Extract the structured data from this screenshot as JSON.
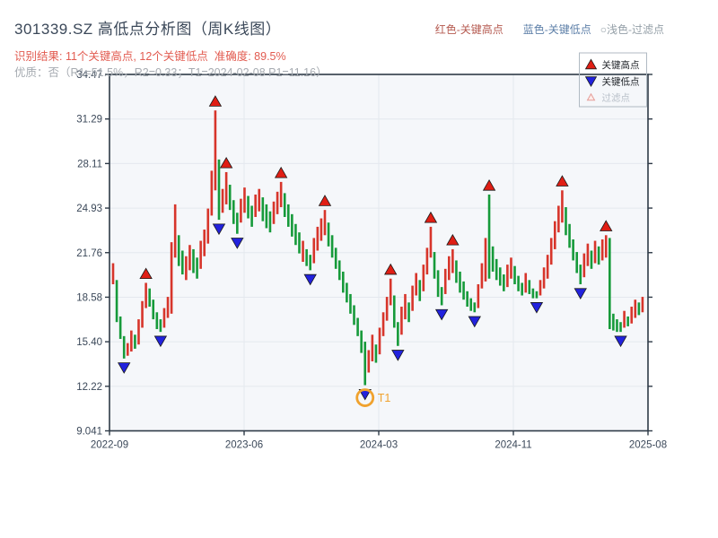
{
  "header": {
    "title": "301339.SZ 高低点分析图（周K线图）",
    "result": "识别结果: 11个关键高点, 12个关键低点  准确度: 89.5%",
    "quality": "优质：否（R1=51.5%，R2=0.33；T1=2024-02-08 P1=11.16）"
  },
  "note": {
    "red": "红色-关键高点",
    "blue": "蓝色-关键低点",
    "filter": "○浅色-过滤点"
  },
  "legend": {
    "high": "关键高点",
    "low": "关键低点",
    "filtered": "过滤点"
  },
  "colors": {
    "up": "#d7352b",
    "down": "#169a3a",
    "key_high": "#e01e14",
    "key_low": "#2222dd",
    "marker_outline": "#1a1a1a",
    "filtered_fill": "#fdecea",
    "filtered_stroke": "#e59d98",
    "t1": "#f0a22e",
    "axis": "#2e3a47",
    "grid": "#e4e8ee",
    "plot_bg": "#f5f7fa",
    "label": "#3b4859",
    "legend_border": "#b0bac3",
    "legend_text": "#1f2328",
    "legend_muted": "#b9c0c9"
  },
  "chart_data": {
    "type": "candlestick",
    "title": "301339.SZ 高低点分析图（周K线图）",
    "x_tick_labels": [
      "2022-09",
      "2023-06",
      "2024-03",
      "2024-11",
      "2025-08"
    ],
    "y_tick_labels": [
      "34.47",
      "31.29",
      "28.11",
      "24.93",
      "21.76",
      "18.58",
      "15.40",
      "12.22",
      "9.041"
    ],
    "ylim": [
      9.041,
      34.47
    ],
    "grid": true,
    "legend_position": "top-right",
    "t1": {
      "index": 69,
      "label": "T1",
      "price": 11.16,
      "date": "2024-02-08"
    },
    "key_high_indices": [
      9,
      28,
      31,
      46,
      58,
      76,
      87,
      93,
      103,
      123,
      135
    ],
    "key_low_indices": [
      3,
      13,
      29,
      34,
      54,
      69,
      78,
      90,
      99,
      116,
      128,
      139
    ],
    "candles": [
      [
        21.0,
        19.5,
        "r"
      ],
      [
        19.8,
        16.8,
        "g"
      ],
      [
        17.2,
        15.6,
        "g"
      ],
      [
        15.8,
        14.2,
        "g"
      ],
      [
        15.3,
        14.4,
        "r"
      ],
      [
        16.2,
        14.7,
        "r"
      ],
      [
        15.9,
        14.9,
        "g"
      ],
      [
        17.0,
        15.2,
        "r"
      ],
      [
        18.3,
        16.4,
        "r"
      ],
      [
        19.6,
        17.8,
        "r"
      ],
      [
        19.2,
        17.9,
        "g"
      ],
      [
        18.4,
        17.0,
        "g"
      ],
      [
        17.5,
        16.3,
        "g"
      ],
      [
        17.0,
        16.1,
        "g"
      ],
      [
        17.8,
        16.4,
        "r"
      ],
      [
        18.6,
        17.1,
        "r"
      ],
      [
        22.5,
        17.4,
        "r"
      ],
      [
        25.2,
        21.4,
        "r"
      ],
      [
        23.0,
        20.8,
        "g"
      ],
      [
        21.9,
        20.2,
        "g"
      ],
      [
        21.5,
        19.8,
        "r"
      ],
      [
        22.3,
        20.5,
        "r"
      ],
      [
        22.0,
        20.3,
        "g"
      ],
      [
        21.4,
        19.9,
        "g"
      ],
      [
        22.6,
        20.6,
        "r"
      ],
      [
        23.4,
        21.5,
        "r"
      ],
      [
        24.9,
        22.4,
        "r"
      ],
      [
        27.6,
        24.4,
        "r"
      ],
      [
        31.9,
        26.2,
        "r"
      ],
      [
        28.4,
        24.1,
        "g"
      ],
      [
        26.3,
        24.6,
        "r"
      ],
      [
        27.5,
        25.2,
        "r"
      ],
      [
        26.6,
        24.8,
        "g"
      ],
      [
        25.5,
        23.8,
        "g"
      ],
      [
        24.6,
        23.1,
        "g"
      ],
      [
        25.6,
        23.9,
        "r"
      ],
      [
        26.4,
        24.6,
        "r"
      ],
      [
        25.8,
        24.2,
        "g"
      ],
      [
        25.1,
        23.6,
        "g"
      ],
      [
        25.9,
        24.3,
        "r"
      ],
      [
        26.3,
        24.7,
        "r"
      ],
      [
        25.7,
        24.0,
        "g"
      ],
      [
        25.2,
        23.5,
        "g"
      ],
      [
        24.7,
        23.2,
        "g"
      ],
      [
        25.4,
        23.8,
        "r"
      ],
      [
        26.1,
        24.5,
        "r"
      ],
      [
        26.8,
        25.0,
        "r"
      ],
      [
        26.0,
        24.3,
        "g"
      ],
      [
        25.2,
        23.6,
        "g"
      ],
      [
        24.5,
        22.9,
        "g"
      ],
      [
        23.8,
        22.3,
        "g"
      ],
      [
        23.2,
        21.7,
        "g"
      ],
      [
        22.6,
        21.1,
        "r"
      ],
      [
        22.0,
        20.8,
        "g"
      ],
      [
        21.6,
        20.5,
        "g"
      ],
      [
        22.8,
        21.0,
        "r"
      ],
      [
        23.6,
        21.9,
        "r"
      ],
      [
        24.2,
        22.6,
        "r"
      ],
      [
        24.8,
        23.0,
        "r"
      ],
      [
        23.9,
        22.2,
        "g"
      ],
      [
        23.0,
        21.4,
        "g"
      ],
      [
        22.1,
        20.6,
        "g"
      ],
      [
        21.2,
        19.8,
        "g"
      ],
      [
        20.4,
        18.9,
        "g"
      ],
      [
        19.6,
        18.2,
        "g"
      ],
      [
        18.8,
        17.4,
        "g"
      ],
      [
        18.0,
        16.6,
        "g"
      ],
      [
        17.1,
        15.8,
        "g"
      ],
      [
        16.2,
        14.6,
        "g"
      ],
      [
        15.4,
        12.3,
        "g"
      ],
      [
        14.8,
        13.2,
        "r"
      ],
      [
        15.9,
        14.0,
        "r"
      ],
      [
        15.2,
        13.9,
        "g"
      ],
      [
        16.4,
        14.5,
        "r"
      ],
      [
        17.5,
        15.8,
        "r"
      ],
      [
        18.6,
        16.9,
        "r"
      ],
      [
        19.9,
        18.0,
        "r"
      ],
      [
        18.7,
        16.4,
        "g"
      ],
      [
        16.8,
        15.1,
        "g"
      ],
      [
        17.9,
        15.9,
        "r"
      ],
      [
        18.8,
        17.0,
        "r"
      ],
      [
        18.2,
        16.8,
        "g"
      ],
      [
        19.4,
        17.6,
        "r"
      ],
      [
        20.3,
        18.7,
        "r"
      ],
      [
        19.8,
        18.3,
        "g"
      ],
      [
        20.9,
        19.0,
        "r"
      ],
      [
        22.1,
        20.2,
        "r"
      ],
      [
        23.6,
        21.4,
        "r"
      ],
      [
        21.8,
        19.9,
        "g"
      ],
      [
        20.5,
        18.6,
        "g"
      ],
      [
        19.3,
        18.0,
        "g"
      ],
      [
        20.6,
        18.8,
        "r"
      ],
      [
        21.5,
        19.8,
        "r"
      ],
      [
        22.0,
        20.3,
        "r"
      ],
      [
        21.2,
        19.6,
        "g"
      ],
      [
        20.4,
        18.9,
        "g"
      ],
      [
        19.7,
        18.4,
        "g"
      ],
      [
        19.0,
        17.9,
        "g"
      ],
      [
        18.5,
        17.6,
        "g"
      ],
      [
        18.2,
        17.5,
        "g"
      ],
      [
        19.5,
        17.8,
        "r"
      ],
      [
        21.0,
        19.2,
        "r"
      ],
      [
        22.8,
        19.7,
        "r"
      ],
      [
        25.9,
        19.9,
        "g"
      ],
      [
        22.2,
        20.4,
        "g"
      ],
      [
        21.3,
        19.8,
        "g"
      ],
      [
        20.7,
        19.4,
        "g"
      ],
      [
        20.2,
        19.0,
        "g"
      ],
      [
        20.9,
        19.3,
        "r"
      ],
      [
        21.4,
        19.9,
        "r"
      ],
      [
        20.8,
        19.5,
        "g"
      ],
      [
        20.1,
        19.0,
        "g"
      ],
      [
        19.6,
        18.7,
        "g"
      ],
      [
        20.3,
        18.9,
        "r"
      ],
      [
        19.8,
        18.8,
        "g"
      ],
      [
        19.2,
        18.5,
        "g"
      ],
      [
        19.0,
        18.5,
        "g"
      ],
      [
        19.8,
        18.7,
        "r"
      ],
      [
        20.7,
        19.2,
        "r"
      ],
      [
        21.6,
        19.9,
        "r"
      ],
      [
        22.8,
        20.9,
        "r"
      ],
      [
        24.0,
        22.0,
        "r"
      ],
      [
        25.1,
        23.2,
        "r"
      ],
      [
        26.2,
        23.9,
        "r"
      ],
      [
        25.0,
        23.0,
        "g"
      ],
      [
        23.8,
        22.1,
        "g"
      ],
      [
        22.7,
        21.2,
        "g"
      ],
      [
        21.8,
        20.3,
        "g"
      ],
      [
        20.9,
        19.5,
        "g"
      ],
      [
        21.7,
        20.0,
        "r"
      ],
      [
        22.4,
        20.8,
        "r"
      ],
      [
        21.9,
        20.6,
        "g"
      ],
      [
        22.6,
        21.0,
        "r"
      ],
      [
        22.2,
        20.9,
        "g"
      ],
      [
        22.7,
        21.2,
        "r"
      ],
      [
        23.0,
        21.4,
        "r"
      ],
      [
        22.8,
        16.3,
        "g"
      ],
      [
        17.4,
        16.2,
        "g"
      ],
      [
        17.0,
        16.1,
        "g"
      ],
      [
        16.8,
        16.1,
        "g"
      ],
      [
        17.6,
        16.4,
        "r"
      ],
      [
        17.2,
        16.5,
        "g"
      ],
      [
        17.9,
        16.7,
        "r"
      ],
      [
        18.4,
        17.1,
        "r"
      ],
      [
        18.2,
        17.3,
        "g"
      ],
      [
        18.6,
        17.5,
        "r"
      ]
    ]
  }
}
